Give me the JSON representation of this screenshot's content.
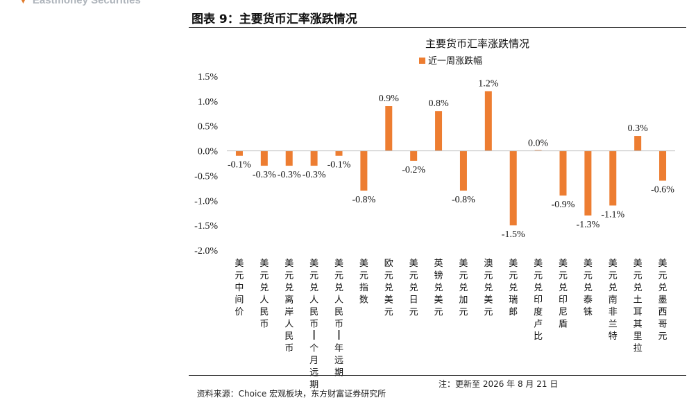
{
  "header": {
    "brand": "Eastmoney Securities",
    "figure_title": "图表 9：主要货币汇率涨跌情况"
  },
  "footer": {
    "source": "资料来源：Choice 宏观板块，东方财富证券研究所",
    "note": "注：更新至 2026 年 8 月 21 日"
  },
  "colors": {
    "bar": "#ED7D31",
    "axis": "#bfbfbf",
    "brand_arrow": "#e07b2b"
  },
  "chart_data": {
    "type": "bar",
    "title": "主要货币汇率涨跌情况",
    "series": [
      {
        "name": "近一周涨跌幅",
        "values": [
          -0.1,
          -0.3,
          -0.3,
          -0.3,
          -0.1,
          -0.8,
          0.9,
          -0.2,
          0.8,
          -0.8,
          1.2,
          -1.5,
          0.0,
          -0.9,
          -1.3,
          -1.1,
          0.3,
          -0.6
        ],
        "labels": [
          "-0.1%",
          "-0.3%",
          "-0.3%",
          "-0.3%",
          "-0.1%",
          "-0.8%",
          "0.9%",
          "-0.2%",
          "0.8%",
          "-0.8%",
          "1.2%",
          "-1.5%",
          "0.0%",
          "-0.9%",
          "-1.3%",
          "-1.1%",
          "0.3%",
          "-0.6%"
        ]
      }
    ],
    "categories": [
      "美元中间价",
      "美元兑人民币",
      "美元兑离岸人民币",
      "美元兑人民币1个月远期",
      "美元兑人民币1年远期",
      "美元指数",
      "欧元兑美元",
      "美元兑日元",
      "英镑兑美元",
      "美元兑加元",
      "澳元兑美元",
      "美元兑瑞郎",
      "美元兑印度卢比",
      "美元兑印尼盾",
      "美元兑泰铢",
      "美元兑南非兰特",
      "美元兑土耳其里拉",
      "美元兑墨西哥元"
    ],
    "category_text": [
      "美元中间价",
      "美元兑人民币",
      "美元兑离岸人民币",
      "美元兑人民币|个月远期",
      "美元兑人民币|年远期",
      "美元指数",
      "欧元兑美元",
      "美元兑日元",
      "英镑兑美元",
      "美元兑加元",
      "澳元兑美元",
      "美元兑瑞郎",
      "美元兑印度卢比",
      "美元兑印尼盾",
      "美元兑泰铢",
      "美元兑南非兰特",
      "美元兑土耳其里拉",
      "美元兑墨西哥元"
    ],
    "yticks": [
      "1.5%",
      "1.0%",
      "0.5%",
      "0.0%",
      "-0.5%",
      "-1.0%",
      "-1.5%",
      "-2.0%"
    ],
    "ylim": [
      -2.0,
      1.5
    ],
    "legend_position": "top"
  }
}
